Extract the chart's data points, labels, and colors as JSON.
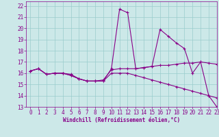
{
  "xlabel": "Windchill (Refroidissement éolien,°C)",
  "background_color": "#cce8e8",
  "grid_color": "#99cccc",
  "line_color": "#880088",
  "xlim": [
    -0.5,
    23
  ],
  "ylim": [
    13,
    22.4
  ],
  "xticks": [
    0,
    1,
    2,
    3,
    4,
    5,
    6,
    7,
    8,
    9,
    10,
    11,
    12,
    13,
    14,
    15,
    16,
    17,
    18,
    19,
    20,
    21,
    22,
    23
  ],
  "yticks": [
    13,
    14,
    15,
    16,
    17,
    18,
    19,
    20,
    21,
    22
  ],
  "line1_x": [
    0,
    1,
    2,
    3,
    4,
    5,
    6,
    7,
    8,
    9,
    10,
    11,
    12,
    13,
    14,
    15,
    16,
    17,
    18,
    19,
    20,
    21,
    22,
    23
  ],
  "line1_y": [
    16.2,
    16.4,
    15.9,
    16.0,
    16.0,
    15.9,
    15.5,
    15.3,
    15.3,
    15.3,
    16.4,
    21.7,
    21.4,
    16.4,
    16.5,
    16.6,
    19.9,
    19.3,
    18.7,
    18.2,
    16.0,
    17.0,
    14.0,
    13.0
  ],
  "line2_x": [
    0,
    1,
    2,
    3,
    4,
    5,
    6,
    7,
    8,
    9,
    10,
    11,
    12,
    13,
    14,
    15,
    16,
    17,
    18,
    19,
    20,
    21,
    22,
    23
  ],
  "line2_y": [
    16.2,
    16.4,
    15.9,
    16.0,
    16.0,
    15.8,
    15.5,
    15.3,
    15.3,
    15.4,
    16.3,
    16.4,
    16.4,
    16.4,
    16.5,
    16.6,
    16.7,
    16.7,
    16.8,
    16.9,
    16.9,
    17.0,
    16.9,
    16.8
  ],
  "line3_x": [
    0,
    1,
    2,
    3,
    4,
    5,
    6,
    7,
    8,
    9,
    10,
    11,
    12,
    13,
    14,
    15,
    16,
    17,
    18,
    19,
    20,
    21,
    22,
    23
  ],
  "line3_y": [
    16.2,
    16.4,
    15.9,
    16.0,
    16.0,
    15.8,
    15.5,
    15.3,
    15.3,
    15.3,
    16.0,
    16.0,
    16.0,
    15.8,
    15.6,
    15.4,
    15.2,
    15.0,
    14.8,
    14.6,
    14.4,
    14.2,
    14.0,
    13.8
  ],
  "figsize": [
    3.2,
    2.0
  ],
  "dpi": 100,
  "tick_fontsize": 5.5,
  "xlabel_fontsize": 5.5
}
